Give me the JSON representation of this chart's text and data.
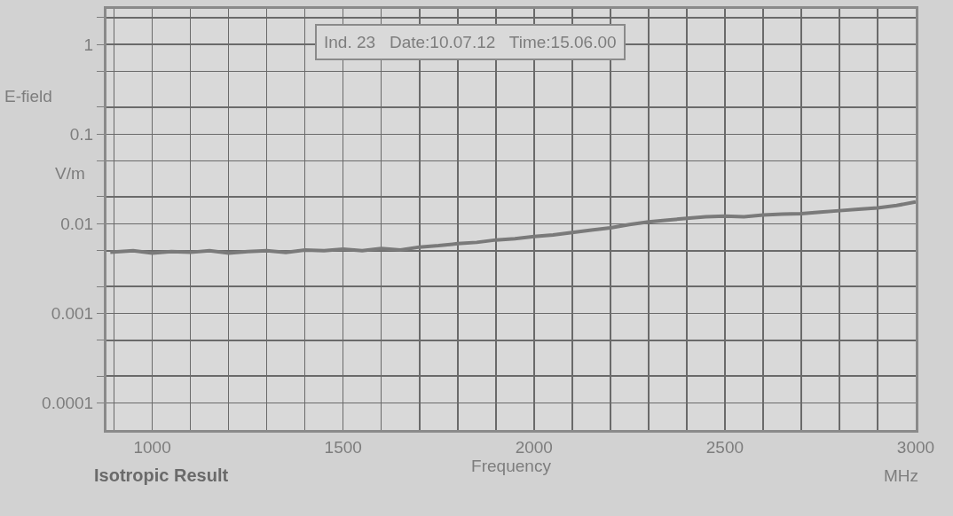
{
  "chart_data": {
    "type": "line",
    "xlabel": "Frequency",
    "ylabel": "E-field",
    "annotations": [
      "Ind. 23   Date:10.07.12   Time:15.06.00",
      "V/m",
      "Isotropic Result",
      "MHz"
    ],
    "x": [
      890,
      950,
      1000,
      1050,
      1100,
      1150,
      1200,
      1250,
      1300,
      1350,
      1400,
      1450,
      1500,
      1550,
      1600,
      1650,
      1700,
      1750,
      1800,
      1850,
      1900,
      1950,
      2000,
      2050,
      2100,
      2150,
      2200,
      2250,
      2300,
      2350,
      2400,
      2450,
      2500,
      2550,
      2600,
      2650,
      2700,
      2750,
      2800,
      2850,
      2900,
      2950,
      3000
    ],
    "series": [
      {
        "color": "#7a7a7a",
        "values": [
          0.0048,
          0.005,
          0.0047,
          0.0049,
          0.0048,
          0.005,
          0.0047,
          0.0049,
          0.005,
          0.0048,
          0.0051,
          0.005,
          0.0052,
          0.005,
          0.0053,
          0.0051,
          0.0055,
          0.0057,
          0.006,
          0.0062,
          0.0066,
          0.0068,
          0.0072,
          0.0075,
          0.008,
          0.0085,
          0.009,
          0.0098,
          0.0105,
          0.011,
          0.0115,
          0.012,
          0.0122,
          0.012,
          0.0125,
          0.0128,
          0.013,
          0.0135,
          0.014,
          0.0145,
          0.015,
          0.016,
          0.0175
        ]
      }
    ],
    "xlim": [
      880,
      3000
    ],
    "xticks": [
      {
        "value": 900,
        "label": null
      },
      1000,
      {
        "value": 1100,
        "label": null
      },
      {
        "value": 1200,
        "label": null
      },
      {
        "value": 1300,
        "label": null
      },
      {
        "value": 1400,
        "label": null
      },
      1500,
      {
        "value": 1600,
        "label": null
      },
      {
        "value": 1700,
        "label": null
      },
      {
        "value": 1800,
        "label": null
      },
      {
        "value": 1900,
        "label": null
      },
      2000,
      {
        "value": 2100,
        "label": null
      },
      {
        "value": 2200,
        "label": null
      },
      {
        "value": 2300,
        "label": null
      },
      {
        "value": 2400,
        "label": null
      },
      2500,
      {
        "value": 2600,
        "label": null
      },
      {
        "value": 2700,
        "label": null
      },
      {
        "value": 2800,
        "label": null
      },
      {
        "value": 2900,
        "label": null
      },
      3000
    ],
    "ylim": [
      5e-05,
      2.5
    ],
    "yticks": [
      {
        "value": 0.0001,
        "label": "0.0001"
      },
      {
        "value": 0.0002,
        "label": null
      },
      {
        "value": 0.0005,
        "label": null
      },
      {
        "value": 0.001,
        "label": "0.001"
      },
      {
        "value": 0.002,
        "label": null
      },
      {
        "value": 0.005,
        "label": null
      },
      {
        "value": 0.01,
        "label": "0.01"
      },
      {
        "value": 0.02,
        "label": null
      },
      {
        "value": 0.05,
        "label": null
      },
      {
        "value": 0.1,
        "label": "0.1"
      },
      {
        "value": 0.2,
        "label": null
      },
      {
        "value": 0.5,
        "label": null
      },
      1,
      {
        "value": 2,
        "label": null
      }
    ],
    "log": "y",
    "grid": true,
    "marker": "none",
    "line_style": "solid"
  }
}
